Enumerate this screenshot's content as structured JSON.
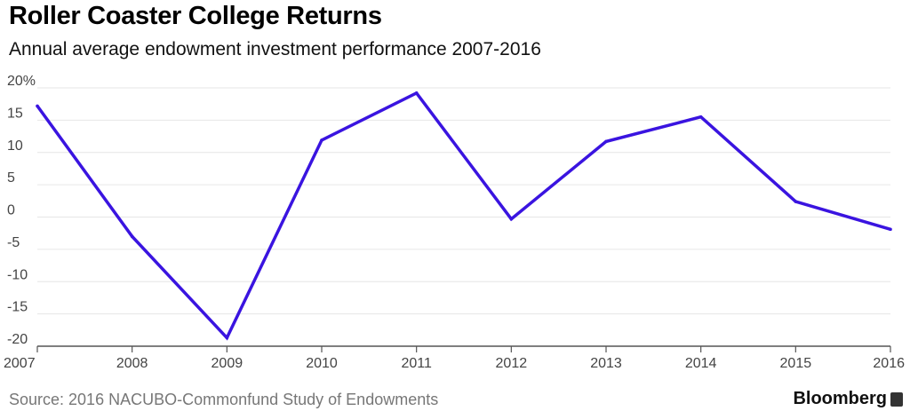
{
  "header": {
    "title": "Roller Coaster College Returns",
    "subtitle": "Annual average endowment investment performance 2007-2016"
  },
  "footer": {
    "source": "Source: 2016 NACUBO-Commonfund Study of Endowments",
    "brand": "Bloomberg"
  },
  "colors": {
    "line": "#3a14e0",
    "grid": "#e6e6e6",
    "axis": "#555555",
    "tick_text": "#444444"
  },
  "icons": {
    "brand": "bloomberg-logo-icon"
  },
  "chart_data": {
    "type": "line",
    "title": "Roller Coaster College Returns",
    "subtitle": "Annual average endowment investment performance 2007-2016",
    "x": [
      2007,
      2008,
      2009,
      2010,
      2011,
      2012,
      2013,
      2014,
      2015,
      2016
    ],
    "x_tick_labels": [
      "2007",
      "2008",
      "2009",
      "2010",
      "2011",
      "2012",
      "2013",
      "2014",
      "2015",
      "2016"
    ],
    "series": [
      {
        "values": [
          17.2,
          -3.0,
          -18.7,
          11.9,
          19.2,
          -0.3,
          11.7,
          15.5,
          2.4,
          -1.9
        ]
      }
    ],
    "ylim": [
      -20,
      20
    ],
    "y_ticks": [
      20,
      15,
      10,
      5,
      0,
      -5,
      -10,
      -15,
      -20
    ],
    "y_tick_labels": [
      "20%",
      "15",
      "10",
      "5",
      "0",
      "-5",
      "-10",
      "-15",
      "-20"
    ],
    "grid": true,
    "legend": "none"
  }
}
